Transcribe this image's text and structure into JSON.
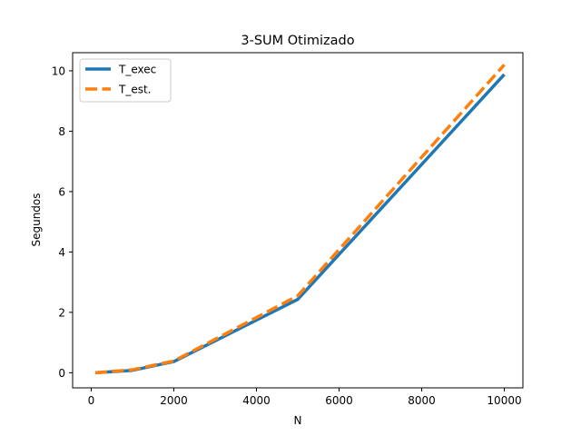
{
  "chart_data": {
    "type": "line",
    "title": "3-SUM Otimizado",
    "xlabel": "N",
    "ylabel": "Segundos",
    "xlim": [
      -450,
      10450
    ],
    "ylim": [
      -0.5,
      10.6
    ],
    "xticks": [
      0,
      2000,
      4000,
      6000,
      8000,
      10000
    ],
    "yticks": [
      0,
      2,
      4,
      6,
      8,
      10
    ],
    "legend": "upper-left",
    "grid": false,
    "series": [
      {
        "name": "T_exec",
        "color": "#1f77b4",
        "style": "solid",
        "x": [
          100,
          1000,
          2000,
          5000,
          10000
        ],
        "y": [
          0.0,
          0.08,
          0.37,
          2.43,
          9.88
        ]
      },
      {
        "name": "T_est.",
        "color": "#ff7f0e",
        "style": "dashed",
        "x": [
          100,
          1000,
          2000,
          5000,
          10000
        ],
        "y": [
          0.0,
          0.1,
          0.39,
          2.55,
          10.2
        ]
      }
    ]
  }
}
